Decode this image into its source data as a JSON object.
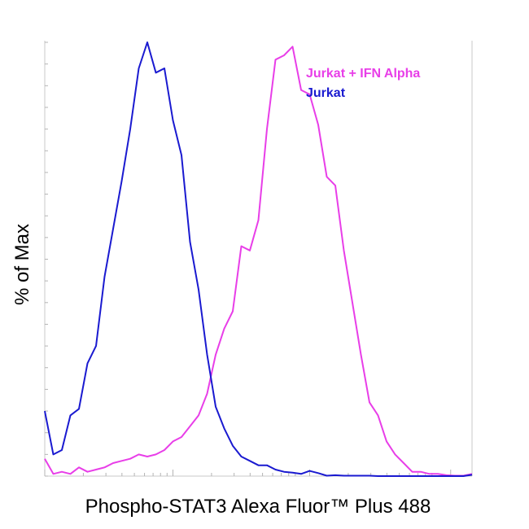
{
  "chart_data": {
    "type": "line",
    "title": "",
    "xlabel": "Phospho-STAT3  Alexa Fluor™ Plus 488",
    "ylabel": "% of Max",
    "xscale": "log",
    "ylim": [
      0,
      100
    ],
    "grid": false,
    "legend_position": "top-right",
    "series": [
      {
        "name": "Jurkat + IFN Alpha",
        "color": "#e83ee8",
        "x": [
          0,
          2,
          4,
          6,
          8,
          10,
          12,
          14,
          16,
          18,
          20,
          22,
          24,
          26,
          28,
          30,
          32,
          34,
          36,
          38,
          40,
          42,
          44,
          46,
          48,
          50,
          52,
          54,
          56,
          58,
          60,
          62,
          64,
          66,
          68,
          70,
          72,
          74,
          76,
          78,
          80,
          82,
          84,
          86,
          88,
          90,
          92,
          94,
          96,
          98,
          100
        ],
        "y": [
          4,
          0.5,
          1,
          0.5,
          2,
          1,
          1.5,
          2,
          3,
          3.5,
          4,
          5,
          4.5,
          5,
          6,
          8,
          9,
          11.5,
          14,
          19,
          28,
          34,
          38,
          53,
          52,
          59,
          80,
          96,
          97,
          99,
          89,
          88,
          81,
          69,
          67,
          52,
          40,
          28,
          17,
          14,
          8,
          5,
          3,
          1,
          1,
          0.5,
          0.5,
          0.2,
          0.1,
          0.1,
          0.5
        ]
      },
      {
        "name": "Jurkat",
        "color": "#1a1ad0",
        "x": [
          0,
          2,
          4,
          6,
          8,
          10,
          12,
          14,
          16,
          18,
          20,
          22,
          24,
          26,
          28,
          30,
          32,
          34,
          36,
          38,
          40,
          42,
          44,
          46,
          48,
          50,
          52,
          54,
          56,
          58,
          60,
          62,
          64,
          66,
          68,
          70,
          72,
          74,
          76,
          78,
          80,
          82,
          84,
          86,
          88,
          90,
          92,
          94,
          96,
          98,
          100
        ],
        "y": [
          15,
          5,
          6,
          14,
          15.5,
          26,
          30,
          46,
          57,
          68,
          80,
          94,
          100,
          93,
          94,
          82,
          74,
          54,
          43,
          28,
          16,
          11,
          7,
          4.5,
          3.5,
          2.5,
          2.5,
          1.5,
          1,
          0.8,
          0.5,
          1.2,
          0.7,
          0.1,
          0.2,
          0.1,
          0.1,
          0.1,
          0.1,
          0,
          0,
          0,
          0,
          0,
          0,
          0,
          0,
          0,
          0,
          0,
          0.3
        ]
      }
    ]
  }
}
